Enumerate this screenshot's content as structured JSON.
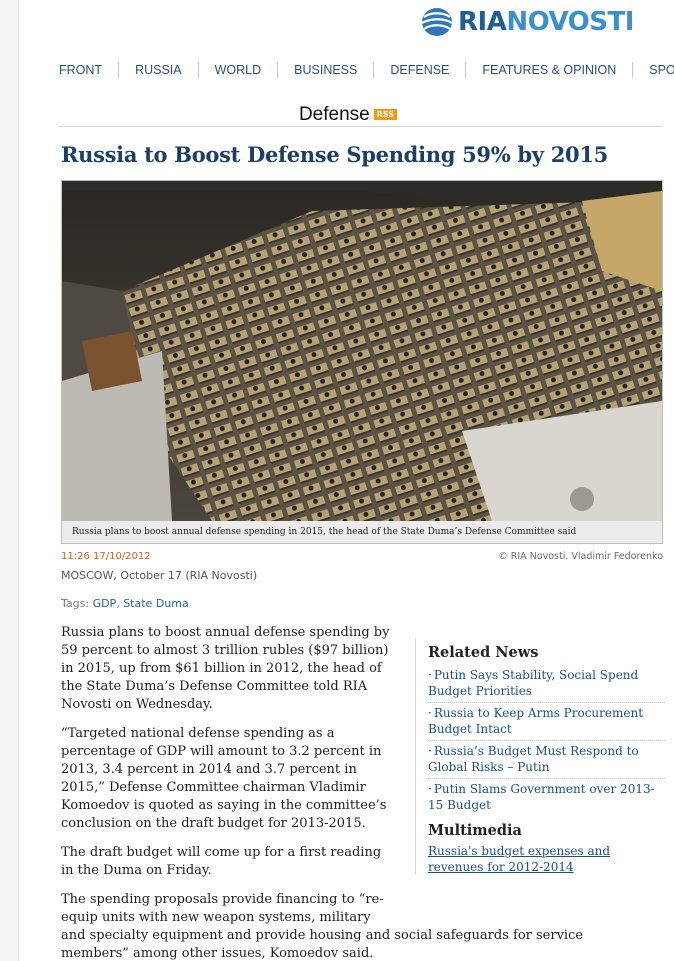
{
  "brand": {
    "ria": "RIA",
    "novosti": "NOVOSTI",
    "accent": "#1f5e97"
  },
  "nav": [
    "FRONT",
    "RUSSIA",
    "WORLD",
    "BUSINESS",
    "DEFENSE",
    "FEATURES & OPINION",
    "SPORT"
  ],
  "section": {
    "title": "Defense",
    "rss": "RSS"
  },
  "headline": "Russia to Boost Defense Spending 59% by 2015",
  "photo": {
    "caption": "Russia plans to boost annual defense spending in 2015, the head of the State Duma’s Defense Committee said",
    "credit": "© RIA Novosti. Vladimir Fedorenko"
  },
  "meta": {
    "time": "11:26 17/10/2012",
    "dateline": "MOSCOW, October 17 (RIA Novosti)",
    "tags_label": "Tags:",
    "tags": [
      "GDP",
      "State Duma"
    ]
  },
  "article": {
    "paragraphs": [
      "Russia plans to boost annual defense spending by 59 percent to almost 3 trillion rubles ($97 billion) in 2015, up from $61 billion in 2012, the head of the State Duma’s Defense Committee told RIA Novosti on Wednesday.",
      "“Targeted national defense spending as a percentage of GDP will amount to 3.2 percent in 2013, 3.4 percent in 2014 and 3.7 percent in 2015,” Defense Committee chairman Vladimir Komoedov is quoted as saying in the committee’s conclusion on the draft budget for 2013-2015.",
      "The draft budget will come up for a first reading in the Duma on Friday."
    ],
    "last_para_narrow": "The spending proposals provide financing to “re-equip units with new weapon systems, military",
    "last_para_wide": "and specialty equipment and provide housing and social safeguards for service members” among other issues, Komoedov said."
  },
  "sidebar": {
    "related_heading": "Related News",
    "related": [
      "Putin Says Stability, Social Spend Budget Priorities",
      "Russia to Keep Arms Procurement Budget Intact",
      "Russia’s Budget Must Respond to Global Risks – Putin",
      "Putin Slams Government over 2013-15 Budget"
    ],
    "multimedia_heading": "Multimedia",
    "multimedia_link": "Russia's budget expenses and revenues for 2012-2014"
  }
}
